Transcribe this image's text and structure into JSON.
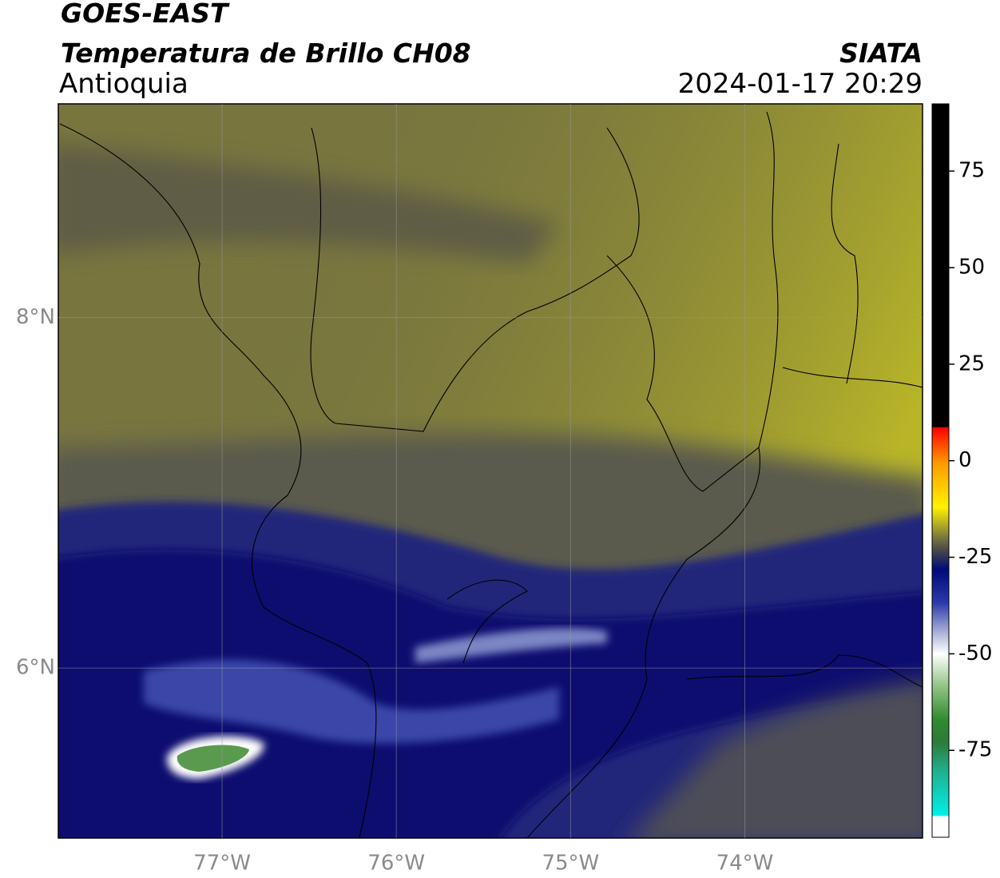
{
  "header": {
    "title": "GOES-EAST",
    "subtitle": "Temperatura de Brillo CH08",
    "region": "Antioquia",
    "source": "SIATA",
    "datetime": "2024-01-17 20:29"
  },
  "map": {
    "xlim": [
      -77.94,
      -72.98
    ],
    "ylim": [
      5.03,
      9.22
    ],
    "lon_ticks": [
      {
        "value": -77,
        "label": "77°W"
      },
      {
        "value": -76,
        "label": "76°W"
      },
      {
        "value": -75,
        "label": "75°W"
      },
      {
        "value": -74,
        "label": "74°W"
      }
    ],
    "lat_ticks": [
      {
        "value": 8,
        "label": "8°N"
      },
      {
        "value": 6,
        "label": "6°N"
      }
    ]
  },
  "colorbar": {
    "lim": [
      -97.5,
      92.4
    ],
    "ticks": [
      75,
      50,
      25,
      0,
      -25,
      -50,
      -75
    ]
  }
}
